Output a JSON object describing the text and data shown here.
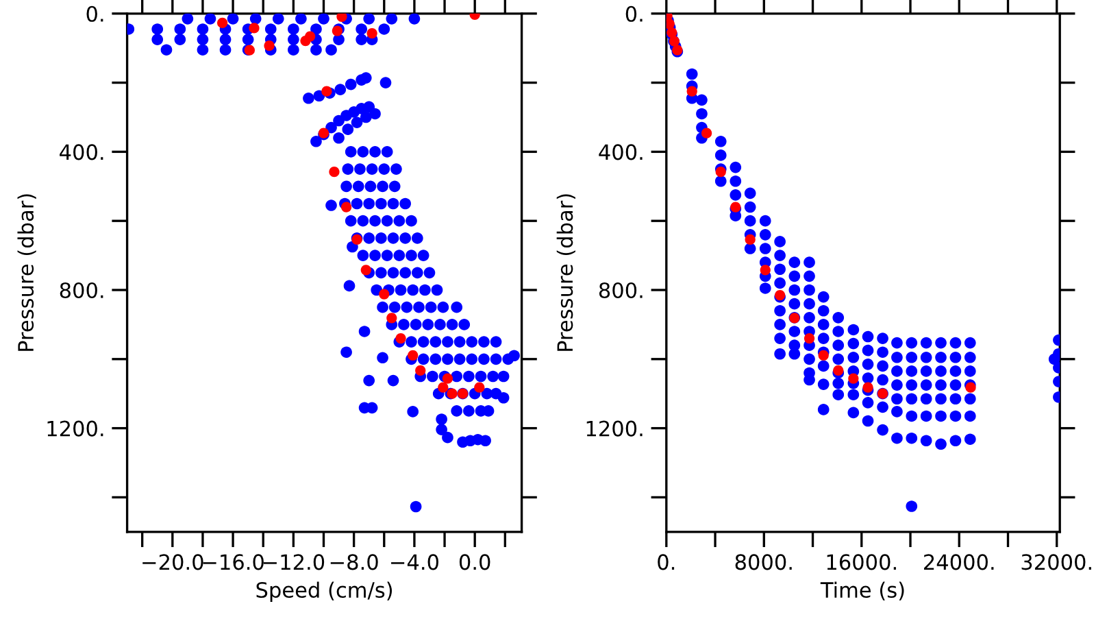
{
  "chart_data": [
    {
      "type": "scatter",
      "xlabel": "Speed (cm/s)",
      "ylabel": "Pressure (dbar)",
      "marker": "circle",
      "grid": false,
      "xlim": [
        -23,
        3.1
      ],
      "xticks": [
        {
          "value": -22,
          "label": null
        },
        {
          "value": -20,
          "label": "−20.0"
        },
        {
          "value": -18,
          "label": null
        },
        {
          "value": -16,
          "label": "−16.0"
        },
        {
          "value": -14,
          "label": null
        },
        {
          "value": -12,
          "label": "−12.0"
        },
        {
          "value": -10,
          "label": null
        },
        {
          "value": -8,
          "label": "−8.0"
        },
        {
          "value": -6,
          "label": null
        },
        {
          "value": -4,
          "label": "−4.0"
        },
        {
          "value": -2,
          "label": null
        },
        {
          "value": 0,
          "label": "0.0"
        },
        {
          "value": 2,
          "label": null
        }
      ],
      "ylim": [
        1500,
        0
      ],
      "yticks": [
        {
          "value": 0,
          "label": "0."
        },
        {
          "value": 200,
          "label": null
        },
        {
          "value": 400,
          "label": "400."
        },
        {
          "value": 600,
          "label": null
        },
        {
          "value": 800,
          "label": "800."
        },
        {
          "value": 1000,
          "label": null
        },
        {
          "value": 1200,
          "label": "1200."
        },
        {
          "value": 1400,
          "label": null
        }
      ],
      "series": [
        {
          "color": "#0000ff",
          "x": [
            -19,
            -17.5,
            -16,
            -14.5,
            -13,
            -11.5,
            -10,
            -8.5,
            -7,
            -5.5,
            -4,
            -22.9,
            -21,
            -19.5,
            -18,
            -16.5,
            -15,
            -13.5,
            -12,
            -10.5,
            -9,
            -7.5,
            -6,
            -21,
            -19.5,
            -18,
            -16.5,
            -15,
            -13.5,
            -12,
            -10.5,
            -9,
            -7.5,
            -6.8,
            -20.4,
            -18,
            -16.5,
            -15,
            -13.5,
            -12,
            -10.5,
            -9.5,
            -11,
            -10.3,
            -9.6,
            -8.9,
            -8.2,
            -7.5,
            -7.2,
            -5.9,
            -10.5,
            -10,
            -9.5,
            -9,
            -8.5,
            -8,
            -7.5,
            -7,
            -9,
            -8.4,
            -7.8,
            -7.2,
            -6.6,
            -8.2,
            -7.4,
            -6.6,
            -5.8,
            -8.4,
            -7.6,
            -6.8,
            -6.0,
            -5.2,
            -8.5,
            -7.7,
            -6.9,
            -6.1,
            -5.3,
            -8.6,
            -7.8,
            -7.0,
            -6.2,
            -5.4,
            -4.6,
            -9.5,
            -8.2,
            -7.4,
            -6.6,
            -5.8,
            -5.0,
            -4.2,
            -7.8,
            -7.0,
            -6.2,
            -5.4,
            -4.6,
            -3.8,
            -8.1,
            -7.4,
            -6.6,
            -5.8,
            -5.0,
            -4.2,
            -3.4,
            -7.0,
            -6.2,
            -5.4,
            -4.6,
            -3.8,
            -3.0,
            -8.3,
            -6.5,
            -5.7,
            -4.9,
            -4.1,
            -3.3,
            -2.5,
            -6.1,
            -5.3,
            -4.5,
            -3.7,
            -2.9,
            -2.1,
            -1.2,
            -5.5,
            -4.7,
            -3.9,
            -3.1,
            -2.3,
            -1.5,
            -0.7,
            -5.0,
            -4.2,
            -3.4,
            -2.6,
            -1.8,
            -1.0,
            -0.2,
            0.6,
            1.4,
            -4.2,
            -3.4,
            -2.6,
            -1.8,
            -1.0,
            -0.2,
            0.6,
            1.4,
            2.2,
            2.6,
            -3.6,
            -2.8,
            -2.0,
            -1.2,
            -0.4,
            0.4,
            1.2,
            1.9,
            -2.4,
            -1.6,
            -0.8,
            0,
            0.8,
            1.4,
            -1.2,
            -0.4,
            0.4,
            0.9,
            -8.5,
            -7.3,
            -7.0,
            -7.3,
            -6.8,
            -5.4,
            -6.1,
            -4.1,
            -2.2,
            -2.2,
            -1.8,
            -0.8,
            -0.3,
            0.2,
            0.7,
            -3.9,
            1.9
          ],
          "values": [
            15,
            15,
            15,
            15,
            15,
            15,
            15,
            15,
            15,
            15,
            15,
            45,
            45,
            45,
            45,
            45,
            45,
            45,
            45,
            45,
            45,
            45,
            45,
            75,
            75,
            75,
            75,
            75,
            75,
            75,
            75,
            75,
            75,
            75,
            105,
            105,
            105,
            105,
            105,
            105,
            105,
            105,
            245,
            238,
            230,
            220,
            205,
            192,
            186,
            200,
            370,
            350,
            330,
            310,
            295,
            285,
            275,
            270,
            360,
            335,
            315,
            300,
            290,
            400,
            400,
            400,
            400,
            450,
            450,
            450,
            450,
            450,
            500,
            500,
            500,
            500,
            500,
            550,
            550,
            550,
            550,
            550,
            550,
            555,
            600,
            600,
            600,
            600,
            600,
            600,
            650,
            650,
            650,
            650,
            650,
            650,
            675,
            700,
            700,
            700,
            700,
            700,
            700,
            750,
            750,
            750,
            750,
            750,
            750,
            788,
            800,
            800,
            800,
            800,
            800,
            800,
            850,
            850,
            850,
            850,
            850,
            850,
            850,
            900,
            900,
            900,
            900,
            900,
            900,
            900,
            950,
            950,
            950,
            950,
            950,
            950,
            950,
            950,
            950,
            1000,
            1000,
            1000,
            1000,
            1000,
            1000,
            1000,
            1000,
            1000,
            990,
            1050,
            1050,
            1050,
            1050,
            1050,
            1050,
            1050,
            1050,
            1100,
            1100,
            1100,
            1100,
            1100,
            1100,
            1150,
            1150,
            1150,
            1150,
            980,
            920,
            1062,
            1141,
            1141,
            1062,
            996,
            1152,
            1174,
            1204,
            1227,
            1240,
            1236,
            1233,
            1236,
            1427,
            1112
          ]
        },
        {
          "color": "#ff0000",
          "x": [
            -16.7,
            -14.6,
            -14.9,
            -13.6,
            -11.2,
            -10.9,
            -8.8,
            -9.1,
            -6.8,
            0.0,
            -9.8,
            -10.0,
            -9.3,
            -8.5,
            -7.8,
            -7.2,
            -6.0,
            -5.5,
            -4.9,
            -4.1,
            -3.6,
            -1.8,
            -2.1,
            -1.5,
            -0.8,
            0.3
          ],
          "values": [
            27,
            42,
            106,
            93,
            79,
            66,
            9,
            50,
            57,
            3,
            225,
            346,
            458,
            560,
            654,
            742,
            812,
            881,
            940,
            989,
            1033,
            1056,
            1082,
            1100,
            1100,
            1082
          ]
        }
      ]
    },
    {
      "type": "scatter",
      "xlabel": "Time (s)",
      "ylabel": "Pressure (dbar)",
      "marker": "circle",
      "grid": false,
      "xlim": [
        0,
        32250
      ],
      "xticks": [
        {
          "value": 0,
          "label": "0."
        },
        {
          "value": 4000,
          "label": null
        },
        {
          "value": 8000,
          "label": "8000."
        },
        {
          "value": 12000,
          "label": null
        },
        {
          "value": 16000,
          "label": "16000."
        },
        {
          "value": 20000,
          "label": null
        },
        {
          "value": 24000,
          "label": "24000."
        },
        {
          "value": 28000,
          "label": null
        },
        {
          "value": 32000,
          "label": "32000."
        }
      ],
      "ylim": [
        1500,
        0
      ],
      "yticks": [
        {
          "value": 0,
          "label": "0."
        },
        {
          "value": 200,
          "label": null
        },
        {
          "value": 400,
          "label": "400."
        },
        {
          "value": 600,
          "label": null
        },
        {
          "value": 800,
          "label": "800."
        },
        {
          "value": 1000,
          "label": null
        },
        {
          "value": 1200,
          "label": "1200."
        },
        {
          "value": 1400,
          "label": null
        }
      ],
      "series": [
        {
          "color": "#0000ff",
          "x": [
            0,
            150,
            300,
            450,
            600,
            750,
            900,
            2100,
            2100,
            2100,
            2900,
            2900,
            2900,
            2900,
            4460,
            4460,
            4460,
            4460,
            5670,
            5670,
            5670,
            5670,
            5670,
            6870,
            6870,
            6870,
            6870,
            6870,
            8110,
            8110,
            8110,
            8110,
            8110,
            8110,
            9310,
            9310,
            9310,
            9310,
            9310,
            9310,
            9310,
            9310,
            9310,
            10500,
            10500,
            10500,
            10500,
            10500,
            10500,
            10500,
            10500,
            11720,
            11720,
            11720,
            11720,
            11720,
            11720,
            11720,
            11720,
            11720,
            11720,
            12880,
            12880,
            12880,
            12880,
            12880,
            12880,
            12880,
            12880,
            14090,
            14090,
            14090,
            14090,
            14090,
            14090,
            14090,
            15330,
            15330,
            15330,
            15330,
            15330,
            15330,
            15330,
            16520,
            16520,
            16520,
            16520,
            16520,
            16520,
            16520,
            17730,
            17730,
            17730,
            17730,
            17730,
            17730,
            17730,
            18900,
            18900,
            18900,
            18900,
            18900,
            18900,
            18900,
            20100,
            20100,
            20100,
            20100,
            20100,
            20100,
            20100,
            20100,
            21300,
            21300,
            21300,
            21300,
            21300,
            21300,
            21300,
            22500,
            22500,
            22500,
            22500,
            22500,
            22500,
            22500,
            23700,
            23700,
            23700,
            23700,
            23700,
            23700,
            23700,
            24900,
            24900,
            24900,
            24900,
            24900,
            24900,
            24900,
            31800,
            32150,
            32150,
            32150,
            32150,
            32150
          ],
          "values": [
            0,
            20,
            40,
            60,
            80,
            95,
            110,
            175,
            210,
            245,
            250,
            290,
            330,
            360,
            370,
            410,
            450,
            485,
            445,
            485,
            525,
            565,
            585,
            520,
            560,
            600,
            640,
            680,
            600,
            640,
            680,
            720,
            760,
            795,
            660,
            700,
            740,
            780,
            820,
            860,
            900,
            940,
            985,
            720,
            760,
            800,
            840,
            880,
            920,
            960,
            985,
            720,
            760,
            800,
            840,
            880,
            920,
            960,
            1000,
            1040,
            1060,
            820,
            860,
            900,
            940,
            980,
            1020,
            1073,
            1146,
            880,
            920,
            960,
            1000,
            1040,
            1070,
            1103,
            915,
            955,
            995,
            1035,
            1070,
            1103,
            1155,
            935,
            975,
            1015,
            1055,
            1090,
            1126,
            1179,
            940,
            980,
            1020,
            1060,
            1100,
            1139,
            1205,
            953,
            995,
            1035,
            1075,
            1115,
            1152,
            1229,
            953,
            995,
            1035,
            1075,
            1115,
            1165,
            1229,
            1426,
            953,
            995,
            1035,
            1075,
            1115,
            1165,
            1236,
            953,
            995,
            1035,
            1075,
            1115,
            1165,
            1246,
            953,
            995,
            1035,
            1075,
            1115,
            1165,
            1236,
            953,
            995,
            1035,
            1075,
            1115,
            1165,
            1232,
            1000,
            945,
            985,
            1025,
            1065,
            1110
          ]
        },
        {
          "color": "#ff0000",
          "x": [
            70,
            250,
            450,
            650,
            900,
            2100,
            3300,
            4460,
            5670,
            6870,
            8110,
            9310,
            10500,
            11720,
            12880,
            14090,
            15330,
            16520,
            17730,
            24940
          ],
          "values": [
            7,
            30,
            55,
            80,
            106,
            225,
            346,
            458,
            560,
            654,
            742,
            815,
            881,
            940,
            989,
            1033,
            1056,
            1082,
            1100,
            1082
          ]
        }
      ]
    }
  ]
}
